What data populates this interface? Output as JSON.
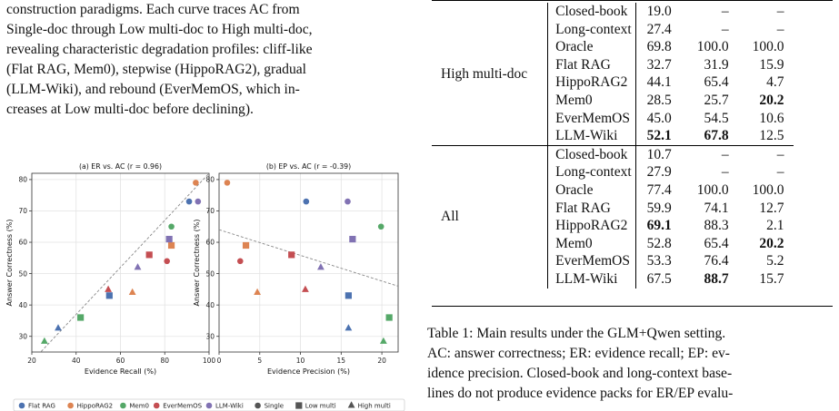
{
  "paragraph_lines": [
    "construction paradigms. Each curve traces AC from",
    "Single-doc through Low multi-doc to High multi-doc,",
    "revealing characteristic degradation profiles: cliff-like",
    "(Flat RAG, Mem0), stepwise (HippoRAG2), gradual",
    "(LLM-Wiki), and rebound (EverMemOS, which in-",
    "creases at Low multi-doc before declining)."
  ],
  "chart_data": [
    {
      "type": "scatter",
      "title": "(a) ER vs. AC  (r = 0.96)",
      "xlabel": "Evidence Recall (%)",
      "ylabel": "Answer Correctness (%)",
      "xlim": [
        20,
        100
      ],
      "ylim": [
        25,
        82
      ],
      "xticks": [
        20,
        40,
        60,
        80,
        100
      ],
      "yticks": [
        30,
        40,
        50,
        60,
        70,
        80
      ],
      "grid": true,
      "trend_line": {
        "from": [
          20,
          22
        ],
        "to": [
          100,
          82
        ]
      },
      "points": [
        {
          "method": "Flat RAG",
          "level": "Single",
          "x": 91.0,
          "y": 73.0
        },
        {
          "method": "Flat RAG",
          "level": "Low multi",
          "x": 55.0,
          "y": 43.0
        },
        {
          "method": "Flat RAG",
          "level": "High multi",
          "x": 31.9,
          "y": 32.7
        },
        {
          "method": "HippoRAG2",
          "level": "Single",
          "x": 94.0,
          "y": 79.0
        },
        {
          "method": "HippoRAG2",
          "level": "Low multi",
          "x": 83.0,
          "y": 59.0
        },
        {
          "method": "HippoRAG2",
          "level": "High multi",
          "x": 65.4,
          "y": 44.1
        },
        {
          "method": "Mem0",
          "level": "Single",
          "x": 83.0,
          "y": 65.0
        },
        {
          "method": "Mem0",
          "level": "Low multi",
          "x": 42.0,
          "y": 36.0
        },
        {
          "method": "Mem0",
          "level": "High multi",
          "x": 25.7,
          "y": 28.5
        },
        {
          "method": "EverMemOS",
          "level": "Single",
          "x": 81.0,
          "y": 54.0
        },
        {
          "method": "EverMemOS",
          "level": "Low multi",
          "x": 73.0,
          "y": 56.0
        },
        {
          "method": "EverMemOS",
          "level": "High multi",
          "x": 54.5,
          "y": 45.0
        },
        {
          "method": "LLM-Wiki",
          "level": "Single",
          "x": 95.0,
          "y": 73.0
        },
        {
          "method": "LLM-Wiki",
          "level": "Low multi",
          "x": 82.0,
          "y": 61.0
        },
        {
          "method": "LLM-Wiki",
          "level": "High multi",
          "x": 67.8,
          "y": 52.1
        }
      ]
    },
    {
      "type": "scatter",
      "title": "(b) EP vs. AC  (r = -0.39)",
      "xlabel": "Evidence Precision (%)",
      "ylabel": "Answer Correctness (%)",
      "xlim": [
        0,
        22
      ],
      "ylim": [
        25,
        82
      ],
      "xticks": [
        0,
        5,
        10,
        15,
        20
      ],
      "yticks": [
        30,
        40,
        50,
        60,
        70,
        80
      ],
      "grid": true,
      "trend_line": {
        "from": [
          0,
          64
        ],
        "to": [
          22,
          46
        ]
      },
      "points": [
        {
          "method": "Flat RAG",
          "level": "Single",
          "x": 10.7,
          "y": 73.0
        },
        {
          "method": "Flat RAG",
          "level": "Low multi",
          "x": 15.9,
          "y": 43.0
        },
        {
          "method": "Flat RAG",
          "level": "High multi",
          "x": 15.9,
          "y": 32.7
        },
        {
          "method": "HippoRAG2",
          "level": "Single",
          "x": 1.0,
          "y": 79.0
        },
        {
          "method": "HippoRAG2",
          "level": "Low multi",
          "x": 3.3,
          "y": 59.0
        },
        {
          "method": "HippoRAG2",
          "level": "High multi",
          "x": 4.7,
          "y": 44.1
        },
        {
          "method": "Mem0",
          "level": "Single",
          "x": 19.9,
          "y": 65.0
        },
        {
          "method": "Mem0",
          "level": "Low multi",
          "x": 20.9,
          "y": 36.0
        },
        {
          "method": "Mem0",
          "level": "High multi",
          "x": 20.2,
          "y": 28.5
        },
        {
          "method": "EverMemOS",
          "level": "Single",
          "x": 2.6,
          "y": 54.0
        },
        {
          "method": "EverMemOS",
          "level": "Low multi",
          "x": 8.9,
          "y": 56.0
        },
        {
          "method": "EverMemOS",
          "level": "High multi",
          "x": 10.6,
          "y": 45.0
        },
        {
          "method": "LLM-Wiki",
          "level": "Single",
          "x": 15.8,
          "y": 73.0
        },
        {
          "method": "LLM-Wiki",
          "level": "Low multi",
          "x": 16.4,
          "y": 61.0
        },
        {
          "method": "LLM-Wiki",
          "level": "High multi",
          "x": 12.5,
          "y": 52.1
        }
      ]
    }
  ],
  "legend": {
    "methods": [
      {
        "name": "Flat RAG",
        "color": "#4c72b0"
      },
      {
        "name": "HippoRAG2",
        "color": "#dd8452"
      },
      {
        "name": "Mem0",
        "color": "#55a868"
      },
      {
        "name": "EverMemOS",
        "color": "#c44e52"
      },
      {
        "name": "LLM-Wiki",
        "color": "#8172b3"
      }
    ],
    "levels": [
      {
        "name": "Single",
        "marker": "circle"
      },
      {
        "name": "Low multi",
        "marker": "square"
      },
      {
        "name": "High multi",
        "marker": "triangle"
      }
    ]
  },
  "table": {
    "groups": [
      {
        "setting": "High multi-doc",
        "rows": [
          {
            "method": "Closed-book",
            "ac": "19.0",
            "er": "–",
            "ep": "–"
          },
          {
            "method": "Long-context",
            "ac": "27.4",
            "er": "–",
            "ep": "–"
          },
          {
            "method": "Oracle",
            "ac": "69.8",
            "er": "100.0",
            "ep": "100.0"
          },
          {
            "method": "Flat RAG",
            "ac": "32.7",
            "er": "31.9",
            "ep": "15.9"
          },
          {
            "method": "HippoRAG2",
            "ac": "44.1",
            "er": "65.4",
            "ep": "4.7"
          },
          {
            "method": "Mem0",
            "ac": "28.5",
            "er": "25.7",
            "ep": "20.2",
            "bold": [
              "ep"
            ]
          },
          {
            "method": "EverMemOS",
            "ac": "45.0",
            "er": "54.5",
            "ep": "10.6"
          },
          {
            "method": "LLM-Wiki",
            "ac": "52.1",
            "er": "67.8",
            "ep": "12.5",
            "bold": [
              "ac",
              "er"
            ]
          }
        ]
      },
      {
        "setting": "All",
        "rows": [
          {
            "method": "Closed-book",
            "ac": "10.7",
            "er": "–",
            "ep": "–"
          },
          {
            "method": "Long-context",
            "ac": "27.9",
            "er": "–",
            "ep": "–"
          },
          {
            "method": "Oracle",
            "ac": "77.4",
            "er": "100.0",
            "ep": "100.0"
          },
          {
            "method": "Flat RAG",
            "ac": "59.9",
            "er": "74.1",
            "ep": "12.7"
          },
          {
            "method": "HippoRAG2",
            "ac": "69.1",
            "er": "88.3",
            "ep": "2.1",
            "bold": [
              "ac"
            ]
          },
          {
            "method": "Mem0",
            "ac": "52.8",
            "er": "65.4",
            "ep": "20.2",
            "bold": [
              "ep"
            ]
          },
          {
            "method": "EverMemOS",
            "ac": "53.3",
            "er": "76.4",
            "ep": "5.2"
          },
          {
            "method": "LLM-Wiki",
            "ac": "67.5",
            "er": "88.7",
            "ep": "15.7",
            "bold": [
              "er"
            ]
          }
        ]
      }
    ]
  },
  "caption_lines": [
    "Table 1: Main results under the GLM+Qwen setting.",
    "AC: answer correctness; ER: evidence recall; EP: ev-",
    "idence precision. Closed-book and long-context base-",
    "lines do not produce evidence packs for ER/EP evalu-"
  ]
}
